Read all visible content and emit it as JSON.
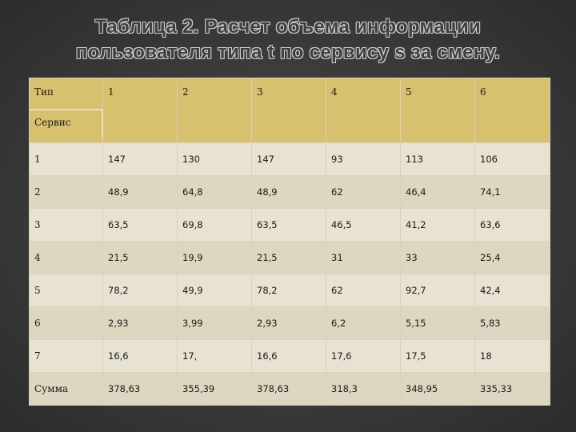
{
  "title": {
    "line1": "Таблица 2. Расчет объема информации",
    "line2": "пользователя типа t по сервису s за смену."
  },
  "table": {
    "corner_type": "Тип",
    "corner_service": "Сервис",
    "columns": [
      "1",
      "2",
      "3",
      "4",
      "5",
      "6"
    ],
    "rows": [
      {
        "label": "1",
        "values": [
          "147",
          "130",
          "147",
          "93",
          "113",
          "106"
        ]
      },
      {
        "label": "2",
        "values": [
          "48,9",
          "64,8",
          "48,9",
          "62",
          "46,4",
          "74,1"
        ]
      },
      {
        "label": "3",
        "values": [
          "63,5",
          "69,8",
          "63,5",
          "46,5",
          "41,2",
          "63,6"
        ]
      },
      {
        "label": "4",
        "values": [
          "21,5",
          "19,9",
          "21,5",
          "31",
          "33",
          "25,4"
        ]
      },
      {
        "label": "5",
        "values": [
          "78,2",
          "49,9",
          "78,2",
          "62",
          "92,7",
          "42,4"
        ]
      },
      {
        "label": "6",
        "values": [
          "2,93",
          "3,99",
          "2,93",
          "6,2",
          "5,15",
          "5,83"
        ]
      },
      {
        "label": "7",
        "values": [
          "16,6",
          "17,",
          "16,6",
          "17,6",
          "17,5",
          "18"
        ]
      },
      {
        "label": "Сумма",
        "values": [
          "378,63",
          "355,39",
          "378,63",
          "318,3",
          "348,95",
          "335,33"
        ]
      }
    ]
  },
  "colors": {
    "background": "#3a3a3a",
    "header": "#d6c16e",
    "row_light": "#e7e2d1",
    "row_dark": "#ddd6c0"
  }
}
